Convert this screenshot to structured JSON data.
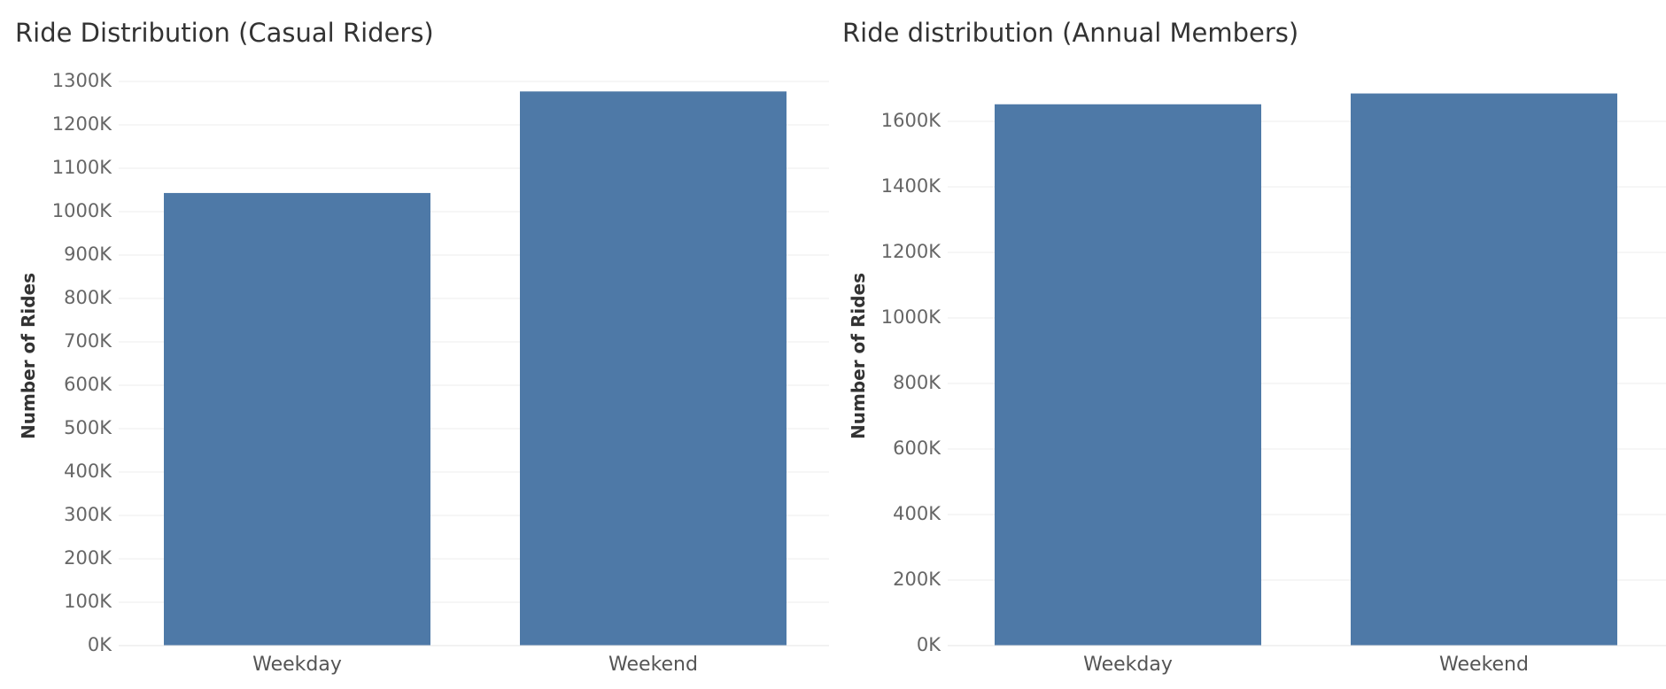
{
  "chart_data": [
    {
      "type": "bar",
      "title": "Ride Distribution (Casual Riders)",
      "ylabel": "Number of Rides",
      "xlabel": "",
      "categories": [
        "Weekday",
        "Weekend"
      ],
      "values": [
        1043000,
        1277000
      ],
      "ylim": [
        0,
        1300000
      ],
      "yticks": [
        0,
        100000,
        200000,
        300000,
        400000,
        500000,
        600000,
        700000,
        800000,
        900000,
        1000000,
        1100000,
        1200000,
        1300000
      ],
      "ytick_labels": [
        "0K",
        "100K",
        "200K",
        "300K",
        "400K",
        "500K",
        "600K",
        "700K",
        "800K",
        "900K",
        "1000K",
        "1100K",
        "1200K",
        "1300K"
      ],
      "grid": true,
      "color": "#4e79a7"
    },
    {
      "type": "bar",
      "title": "Ride distribution (Annual Members)",
      "ylabel": "Number of Rides",
      "xlabel": "",
      "categories": [
        "Weekday",
        "Weekend"
      ],
      "values": [
        1652000,
        1685000
      ],
      "ylim": [
        0,
        1600000
      ],
      "yticks": [
        0,
        200000,
        400000,
        600000,
        800000,
        1000000,
        1200000,
        1400000,
        1600000
      ],
      "ytick_labels": [
        "0K",
        "200K",
        "400K",
        "600K",
        "800K",
        "1000K",
        "1200K",
        "1400K",
        "1600K"
      ],
      "grid": true,
      "color": "#4e79a7"
    }
  ]
}
